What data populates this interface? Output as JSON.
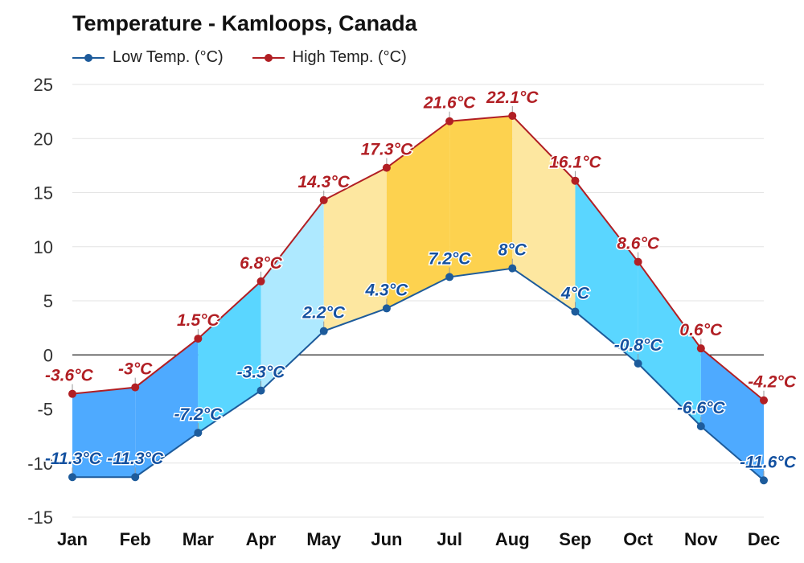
{
  "chart_data": {
    "type": "area",
    "title": "Temperature - Kamloops, Canada",
    "xlabel": "",
    "ylabel": "",
    "ylim": [
      -15,
      25
    ],
    "yticks": [
      25,
      20,
      15,
      10,
      5,
      0,
      -5,
      -10,
      -15
    ],
    "grid": true,
    "legend_position": "top-left",
    "categories": [
      "Jan",
      "Feb",
      "Mar",
      "Apr",
      "May",
      "Jun",
      "Jul",
      "Aug",
      "Sep",
      "Oct",
      "Nov",
      "Dec"
    ],
    "series": [
      {
        "name": "Low Temp. (°C)",
        "color": "#1d5b9b",
        "values": [
          -11.3,
          -11.3,
          -7.2,
          -3.3,
          2.2,
          4.3,
          7.2,
          8,
          4,
          -0.8,
          -6.6,
          -11.6
        ],
        "labels": [
          "-11.3°C",
          "-11.3°C",
          "-7.2°C",
          "-3.3°C",
          "2.2°C",
          "4.3°C",
          "7.2°C",
          "8°C",
          "4°C",
          "-0.8°C",
          "-6.6°C",
          "-11.6°C"
        ],
        "label_color": "#1451a0"
      },
      {
        "name": "High Temp. (°C)",
        "color": "#b11f24",
        "values": [
          -3.6,
          -3,
          1.5,
          6.8,
          14.3,
          17.3,
          21.6,
          22.1,
          16.1,
          8.6,
          0.6,
          -4.2
        ],
        "labels": [
          "-3.6°C",
          "-3°C",
          "1.5°C",
          "6.8°C",
          "14.3°C",
          "17.3°C",
          "21.6°C",
          "22.1°C",
          "16.1°C",
          "8.6°C",
          "0.6°C",
          "-4.2°C"
        ],
        "label_color": "#b11f24"
      }
    ],
    "band_colors": {
      "cold": "#4eaaff",
      "cool": "#5ad6ff",
      "mild": "#aee9ff",
      "warm": "#fde7a0",
      "hot": "#fdd24f"
    }
  }
}
